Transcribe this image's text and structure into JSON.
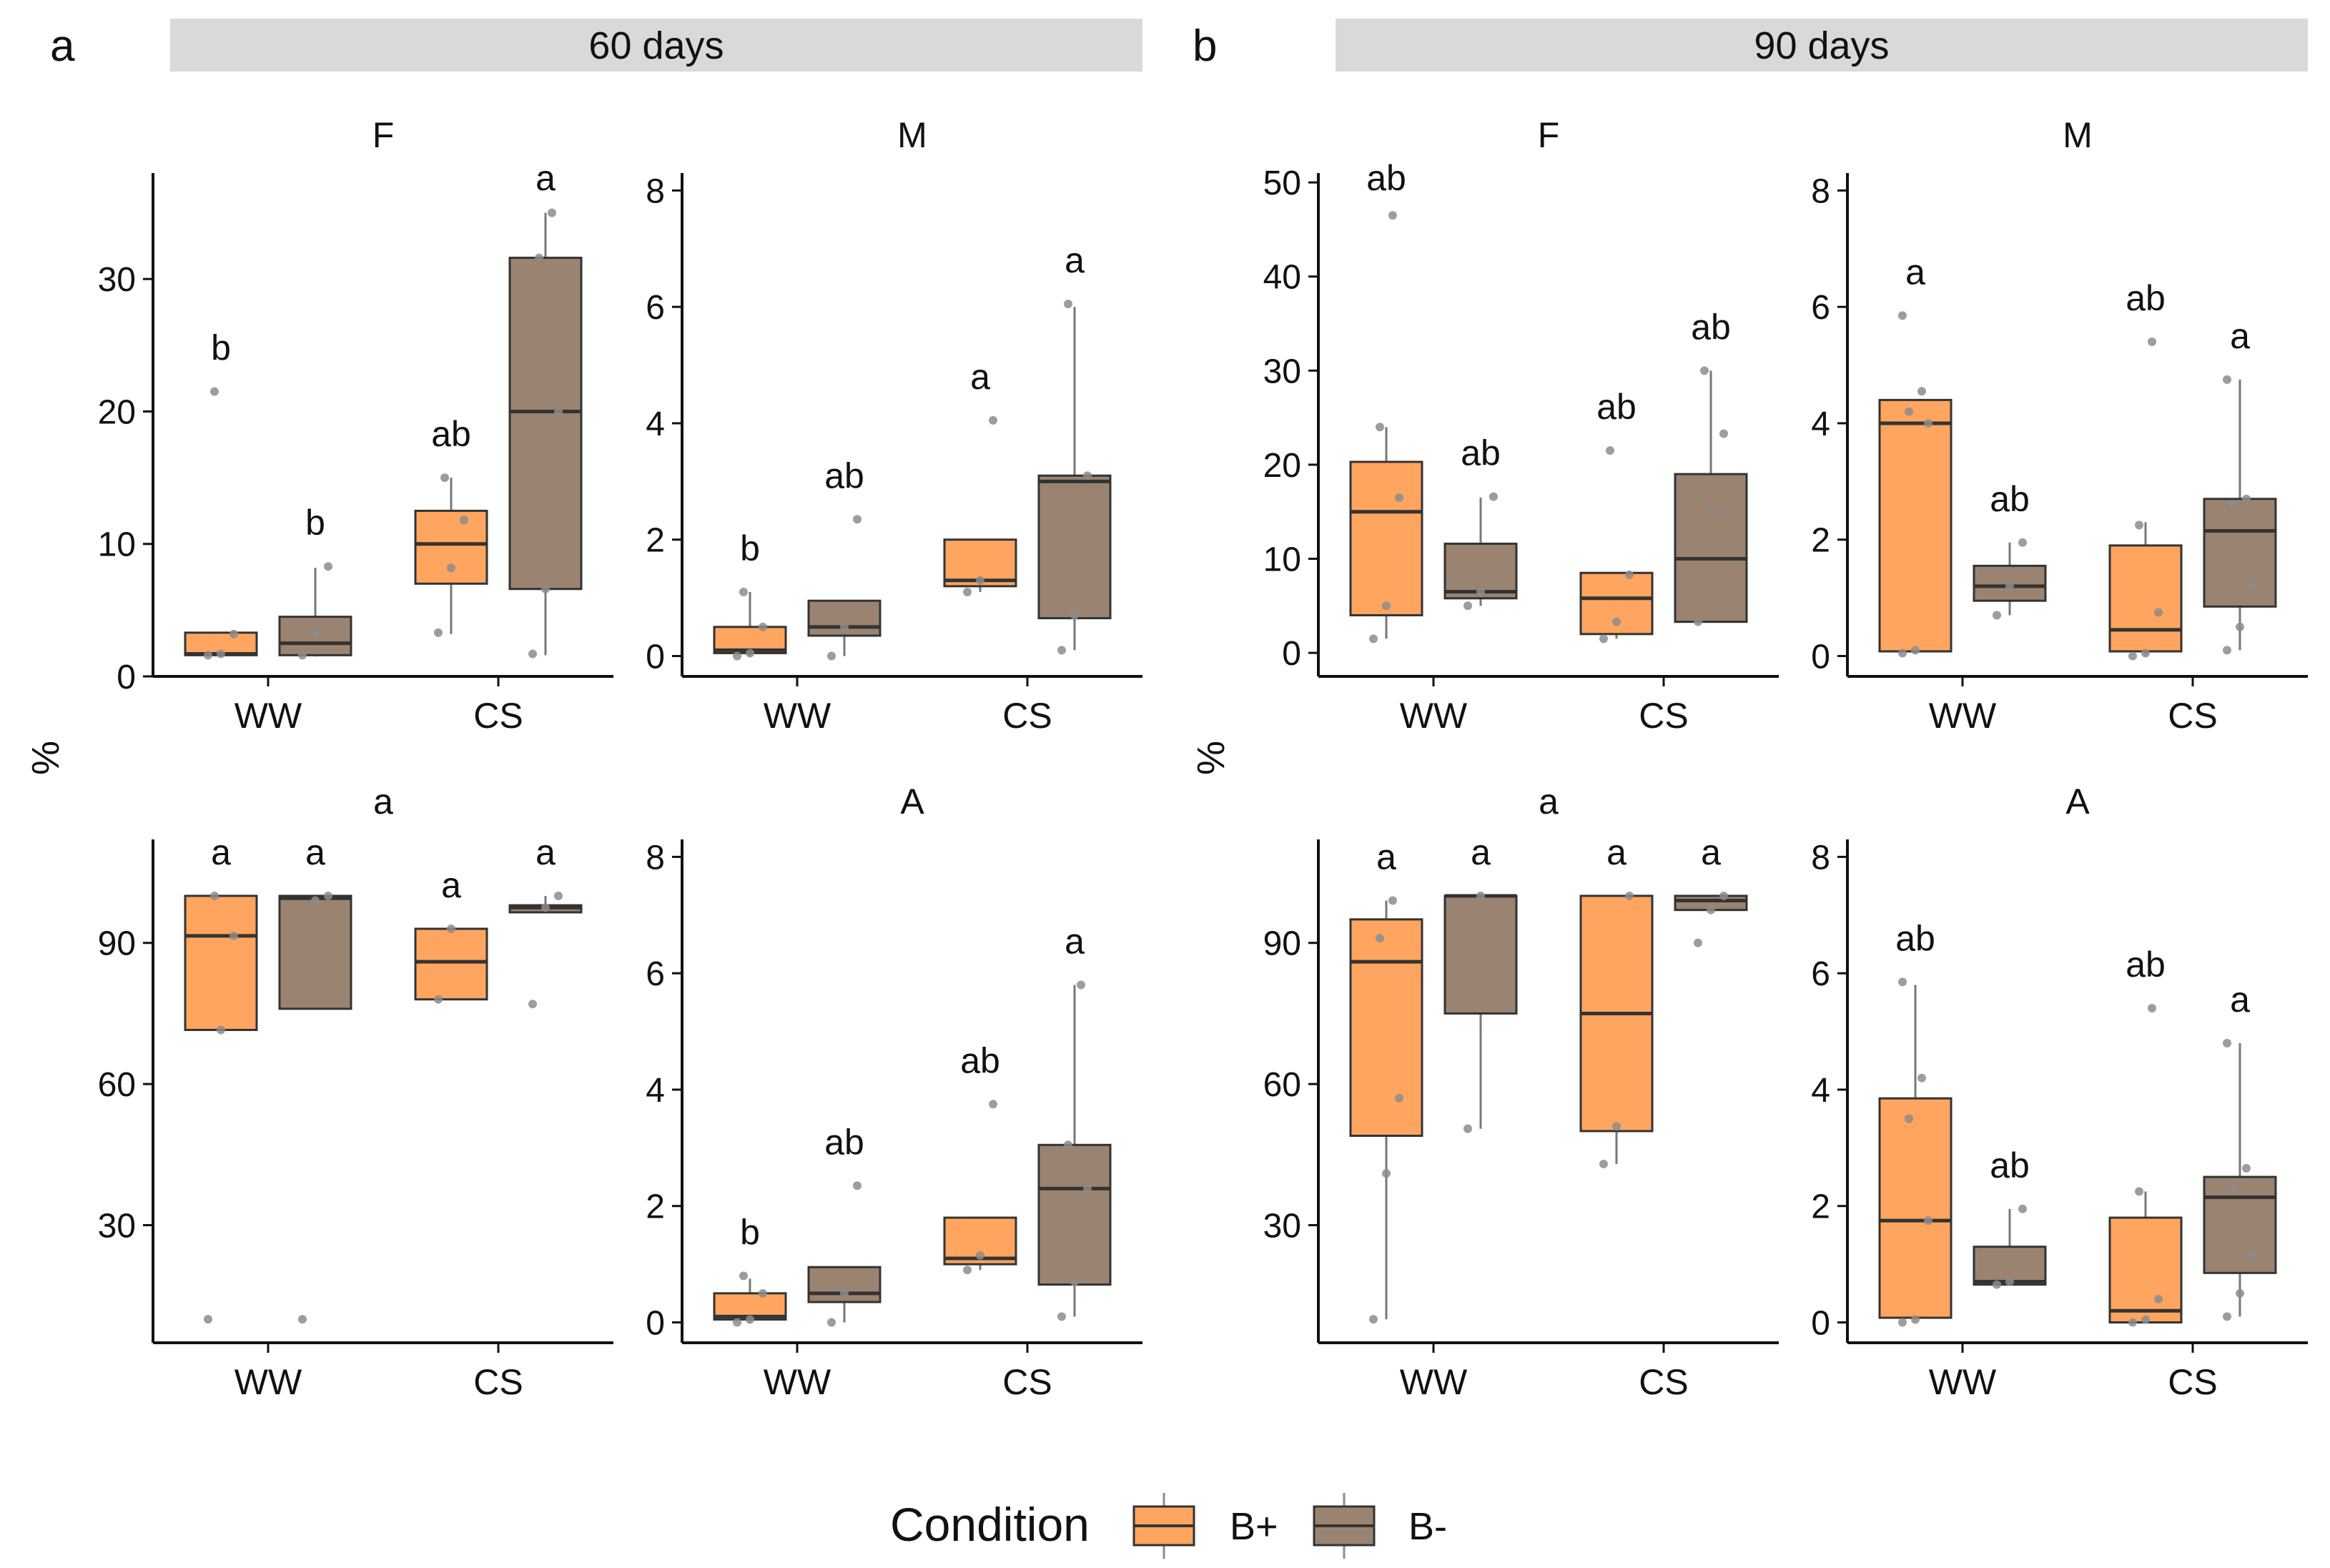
{
  "figure": {
    "y_axis_label": "%",
    "legend": {
      "title": "Condition",
      "items": [
        {
          "label": "B+",
          "color": "#FFA55F"
        },
        {
          "label": "B-",
          "color": "#9B8371"
        }
      ]
    },
    "groups": [
      {
        "letter": "a",
        "title": "60 days"
      },
      {
        "letter": "b",
        "title": "90 days"
      }
    ]
  },
  "colors": {
    "b_plus": "#FFA55F",
    "b_minus": "#9B8371",
    "strip": "#D9D9D9",
    "points": "#8C8C8C"
  },
  "chart_data": [
    {
      "type": "box",
      "group": "60 days",
      "panel": "F",
      "categories": [
        "WW",
        "CS"
      ],
      "ylim": [
        0,
        38
      ],
      "yticks": [
        0,
        10,
        20,
        30
      ],
      "series": [
        {
          "name": "B+",
          "boxes": [
            {
              "category": "WW",
              "min": 1.5,
              "q1": 1.6,
              "median": 1.7,
              "q3": 3.3,
              "max": 3.3,
              "points": [
                1.6,
                1.7,
                3.2,
                21.5
              ],
              "letter": "b"
            },
            {
              "category": "CS",
              "min": 3.2,
              "q1": 7.0,
              "median": 10.0,
              "q3": 12.5,
              "max": 15.0,
              "points": [
                3.3,
                8.2,
                11.8,
                15.0
              ],
              "letter": "ab"
            }
          ]
        },
        {
          "name": "B-",
          "boxes": [
            {
              "category": "WW",
              "min": 1.5,
              "q1": 1.6,
              "median": 2.5,
              "q3": 4.5,
              "max": 8.2,
              "points": [
                1.6,
                3.3,
                8.3
              ],
              "letter": "b"
            },
            {
              "category": "CS",
              "min": 1.6,
              "q1": 6.6,
              "median": 20.0,
              "q3": 31.6,
              "max": 35.0,
              "points": [
                1.7,
                6.6,
                20.0,
                31.6,
                35.0
              ],
              "letter": "a"
            }
          ]
        }
      ]
    },
    {
      "type": "box",
      "group": "60 days",
      "panel": "M",
      "categories": [
        "WW",
        "CS"
      ],
      "ylim": [
        -0.35,
        8.3
      ],
      "yticks": [
        0,
        2,
        4,
        6,
        8
      ],
      "series": [
        {
          "name": "B+",
          "boxes": [
            {
              "category": "WW",
              "min": 0.0,
              "q1": 0.05,
              "median": 0.1,
              "q3": 0.5,
              "max": 1.1,
              "points": [
                0.0,
                0.05,
                0.5,
                1.1
              ],
              "letter": "b"
            },
            {
              "category": "CS",
              "min": 1.1,
              "q1": 1.2,
              "median": 1.3,
              "q3": 2.0,
              "max": 2.0,
              "points": [
                1.1,
                1.3,
                4.05
              ],
              "letter": "a"
            }
          ]
        },
        {
          "name": "B-",
          "boxes": [
            {
              "category": "WW",
              "min": 0.0,
              "q1": 0.35,
              "median": 0.5,
              "q3": 0.95,
              "max": 0.95,
              "points": [
                0.0,
                0.5,
                2.35
              ],
              "letter": "ab"
            },
            {
              "category": "CS",
              "min": 0.1,
              "q1": 0.65,
              "median": 3.0,
              "q3": 3.1,
              "max": 6.0,
              "points": [
                0.1,
                0.7,
                3.1,
                6.05
              ],
              "letter": "a"
            }
          ]
        }
      ]
    },
    {
      "type": "box",
      "group": "60 days",
      "panel": "a",
      "categories": [
        "WW",
        "CS"
      ],
      "ylim": [
        5,
        112
      ],
      "yticks": [
        30,
        60,
        90
      ],
      "series": [
        {
          "name": "B+",
          "boxes": [
            {
              "category": "WW",
              "min": 71.5,
              "q1": 71.5,
              "median": 91.5,
              "q3": 100.0,
              "max": 100.0,
              "points": [
                10.0,
                71.5,
                91.5,
                100.0
              ],
              "letter": "a"
            },
            {
              "category": "CS",
              "min": 78.0,
              "q1": 78.0,
              "median": 86.0,
              "q3": 93.0,
              "max": 93.0,
              "points": [
                78.0,
                93.0
              ],
              "letter": "a"
            }
          ]
        },
        {
          "name": "B-",
          "boxes": [
            {
              "category": "WW",
              "min": 76.0,
              "q1": 76.0,
              "median": 99.5,
              "q3": 100.0,
              "max": 100.0,
              "points": [
                10.0,
                99.0,
                100.0
              ],
              "letter": "a"
            },
            {
              "category": "CS",
              "min": 96.5,
              "q1": 96.5,
              "median": 97.5,
              "q3": 98.0,
              "max": 100.0,
              "points": [
                77.0,
                97.5,
                100.0
              ],
              "letter": "a"
            }
          ]
        }
      ]
    },
    {
      "type": "box",
      "group": "60 days",
      "panel": "A",
      "categories": [
        "WW",
        "CS"
      ],
      "ylim": [
        -0.35,
        8.3
      ],
      "yticks": [
        0,
        2,
        4,
        6,
        8
      ],
      "series": [
        {
          "name": "B+",
          "boxes": [
            {
              "category": "WW",
              "min": 0.0,
              "q1": 0.05,
              "median": 0.1,
              "q3": 0.5,
              "max": 0.75,
              "points": [
                0.0,
                0.05,
                0.5,
                0.8
              ],
              "letter": "b"
            },
            {
              "category": "CS",
              "min": 0.9,
              "q1": 1.0,
              "median": 1.1,
              "q3": 1.8,
              "max": 1.8,
              "points": [
                0.9,
                1.15,
                3.75
              ],
              "letter": "ab"
            }
          ]
        },
        {
          "name": "B-",
          "boxes": [
            {
              "category": "WW",
              "min": 0.0,
              "q1": 0.35,
              "median": 0.5,
              "q3": 0.95,
              "max": 0.95,
              "points": [
                0.0,
                0.5,
                2.35
              ],
              "letter": "ab"
            },
            {
              "category": "CS",
              "min": 0.1,
              "q1": 0.65,
              "median": 2.3,
              "q3": 3.05,
              "max": 5.8,
              "points": [
                0.1,
                0.7,
                2.3,
                3.05,
                5.8
              ],
              "letter": "a"
            }
          ]
        }
      ]
    },
    {
      "type": "box",
      "group": "90 days",
      "panel": "F",
      "categories": [
        "WW",
        "CS"
      ],
      "ylim": [
        -2.5,
        51
      ],
      "yticks": [
        0,
        10,
        20,
        30,
        40,
        50
      ],
      "series": [
        {
          "name": "B+",
          "boxes": [
            {
              "category": "WW",
              "min": 1.5,
              "q1": 4.0,
              "median": 15.0,
              "q3": 20.3,
              "max": 24.0,
              "points": [
                1.5,
                5.0,
                16.5,
                24.0,
                46.5
              ],
              "letter": "ab"
            },
            {
              "category": "CS",
              "min": 1.5,
              "q1": 2.0,
              "median": 5.8,
              "q3": 8.5,
              "max": 8.5,
              "points": [
                1.5,
                3.3,
                8.3,
                21.5
              ],
              "letter": "ab"
            }
          ]
        },
        {
          "name": "B-",
          "boxes": [
            {
              "category": "WW",
              "min": 5.0,
              "q1": 5.8,
              "median": 6.5,
              "q3": 11.6,
              "max": 16.5,
              "points": [
                5.0,
                6.5,
                16.6
              ],
              "letter": "ab"
            },
            {
              "category": "CS",
              "min": 3.3,
              "q1": 3.3,
              "median": 10.0,
              "q3": 19.0,
              "max": 30.0,
              "points": [
                3.3,
                15.0,
                23.3,
                30.0
              ],
              "letter": "ab"
            }
          ]
        }
      ]
    },
    {
      "type": "box",
      "group": "90 days",
      "panel": "M",
      "categories": [
        "WW",
        "CS"
      ],
      "ylim": [
        -0.35,
        8.3
      ],
      "yticks": [
        0,
        2,
        4,
        6,
        8
      ],
      "series": [
        {
          "name": "B+",
          "boxes": [
            {
              "category": "WW",
              "min": 0.05,
              "q1": 0.08,
              "median": 4.0,
              "q3": 4.4,
              "max": 4.4,
              "points": [
                0.05,
                0.1,
                4.0,
                4.2,
                4.55,
                5.85
              ],
              "letter": "a"
            },
            {
              "category": "CS",
              "min": 0.0,
              "q1": 0.08,
              "median": 0.45,
              "q3": 1.9,
              "max": 2.3,
              "points": [
                0.0,
                0.05,
                0.75,
                2.25,
                5.4
              ],
              "letter": "ab"
            }
          ]
        },
        {
          "name": "B-",
          "boxes": [
            {
              "category": "WW",
              "min": 0.7,
              "q1": 0.95,
              "median": 1.2,
              "q3": 1.55,
              "max": 1.95,
              "points": [
                0.7,
                1.2,
                1.95
              ],
              "letter": "ab"
            },
            {
              "category": "CS",
              "min": 0.1,
              "q1": 0.85,
              "median": 2.15,
              "q3": 2.7,
              "max": 4.75,
              "points": [
                0.1,
                0.5,
                1.2,
                2.6,
                2.7,
                4.75
              ],
              "letter": "a"
            }
          ]
        }
      ]
    },
    {
      "type": "box",
      "group": "90 days",
      "panel": "a",
      "categories": [
        "WW",
        "CS"
      ],
      "ylim": [
        5,
        112
      ],
      "yticks": [
        30,
        60,
        90
      ],
      "series": [
        {
          "name": "B+",
          "boxes": [
            {
              "category": "WW",
              "min": 10.0,
              "q1": 49.0,
              "median": 86.0,
              "q3": 95.0,
              "max": 99.0,
              "points": [
                10.0,
                41.0,
                57.0,
                91.0,
                99.0
              ],
              "letter": "a"
            },
            {
              "category": "CS",
              "min": 43.0,
              "q1": 50.0,
              "median": 75.0,
              "q3": 100.0,
              "max": 100.0,
              "points": [
                43.0,
                51.0,
                100.0
              ],
              "letter": "a"
            }
          ]
        },
        {
          "name": "B-",
          "boxes": [
            {
              "category": "WW",
              "min": 50.5,
              "q1": 75.0,
              "median": 100.0,
              "q3": 100.0,
              "max": 100.0,
              "points": [
                50.5,
                100.0
              ],
              "letter": "a"
            },
            {
              "category": "CS",
              "min": 97.0,
              "q1": 97.0,
              "median": 99.0,
              "q3": 100.0,
              "max": 100.0,
              "points": [
                90.0,
                97.0,
                100.0
              ],
              "letter": "a"
            }
          ]
        }
      ]
    },
    {
      "type": "box",
      "group": "90 days",
      "panel": "A",
      "categories": [
        "WW",
        "CS"
      ],
      "ylim": [
        -0.35,
        8.3
      ],
      "yticks": [
        0,
        2,
        4,
        6,
        8
      ],
      "series": [
        {
          "name": "B+",
          "boxes": [
            {
              "category": "WW",
              "min": 0.05,
              "q1": 0.08,
              "median": 1.75,
              "q3": 3.85,
              "max": 5.8,
              "points": [
                0.0,
                0.05,
                1.75,
                3.5,
                4.2,
                5.85
              ],
              "letter": "ab"
            },
            {
              "category": "CS",
              "min": 0.0,
              "q1": 0.0,
              "median": 0.2,
              "q3": 1.8,
              "max": 2.25,
              "points": [
                0.0,
                0.05,
                0.4,
                2.25,
                5.4
              ],
              "letter": "ab"
            }
          ]
        },
        {
          "name": "B-",
          "boxes": [
            {
              "category": "WW",
              "min": 0.65,
              "q1": 0.65,
              "median": 0.7,
              "q3": 1.3,
              "max": 1.95,
              "points": [
                0.65,
                0.7,
                1.95
              ],
              "letter": "ab"
            },
            {
              "category": "CS",
              "min": 0.1,
              "q1": 0.85,
              "median": 2.15,
              "q3": 2.5,
              "max": 4.8,
              "points": [
                0.1,
                0.5,
                1.15,
                2.3,
                2.65,
                4.8
              ],
              "letter": "a"
            }
          ]
        }
      ]
    }
  ]
}
